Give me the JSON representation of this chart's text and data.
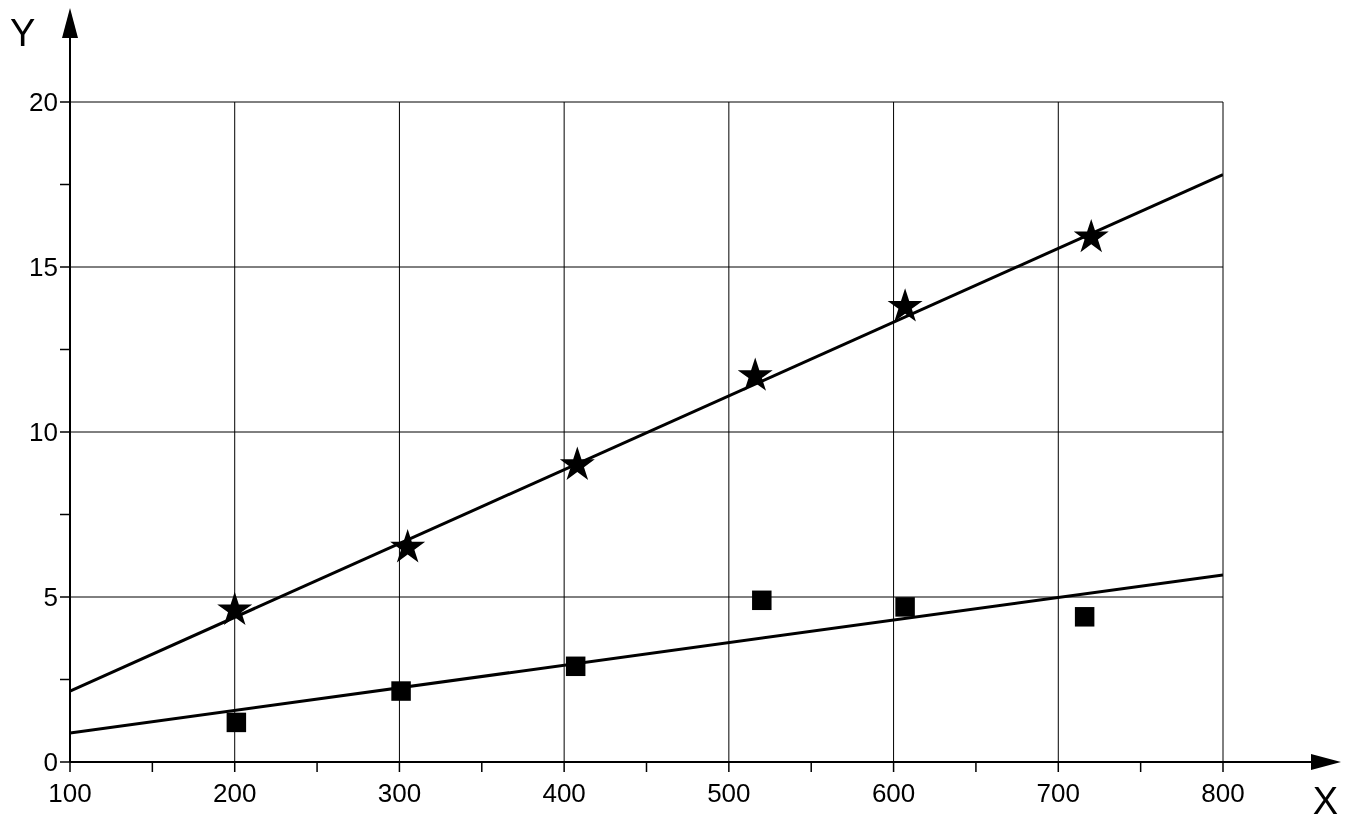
{
  "chart_data": {
    "type": "scatter",
    "xlabel": "X",
    "ylabel": "Y",
    "xlim": [
      100,
      800
    ],
    "ylim": [
      0,
      20
    ],
    "xticks": [
      100,
      {
        "value": 150,
        "label": null
      },
      200,
      {
        "value": 250,
        "label": null
      },
      300,
      {
        "value": 350,
        "label": null
      },
      400,
      {
        "value": 450,
        "label": null
      },
      500,
      {
        "value": 550,
        "label": null
      },
      600,
      {
        "value": 650,
        "label": null
      },
      700,
      {
        "value": 750,
        "label": null
      },
      800
    ],
    "yticks": [
      0,
      {
        "value": 2.5,
        "label": null
      },
      5,
      {
        "value": 7.5,
        "label": null
      },
      10,
      {
        "value": 12.5,
        "label": null
      },
      15,
      {
        "value": 17.5,
        "label": null
      },
      20
    ],
    "grid": true,
    "series": [
      {
        "marker": "star",
        "color": "#000000",
        "x": [
          200,
          305,
          408,
          516,
          607,
          720
        ],
        "values": [
          4.6,
          6.5,
          9.0,
          11.7,
          13.8,
          15.9
        ]
      },
      {
        "marker": "square",
        "color": "#000000",
        "x": [
          201,
          301,
          407,
          520,
          607,
          716
        ],
        "values": [
          1.2,
          2.15,
          2.9,
          4.9,
          4.7,
          4.4
        ]
      },
      {
        "type": "line",
        "color": "#000000",
        "x": [
          100,
          800
        ],
        "values": [
          2.15,
          17.8
        ]
      },
      {
        "type": "line",
        "color": "#000000",
        "x": [
          100,
          800
        ],
        "values": [
          0.88,
          5.67
        ]
      }
    ]
  }
}
